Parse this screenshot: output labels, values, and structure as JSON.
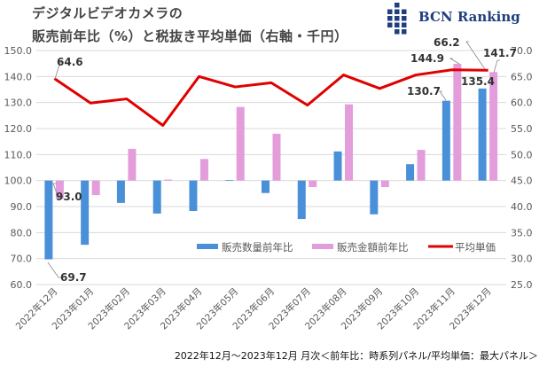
{
  "header": {
    "title_line1": "デジタルビデオカメラの",
    "title_line2": "販売前年比（%）と税抜き平均単価（右軸・千円）",
    "logo_text": "BCN Ranking"
  },
  "footer": "2022年12月～2023年12月 月次＜前年比：時系列パネル/平均単価：最大パネル＞",
  "colors": {
    "quantity": "#4a90d9",
    "amount": "#e39ddb",
    "price": "#e00000",
    "grid": "#d9d9d9"
  },
  "chart_data": {
    "type": "bar",
    "title": "デジタルビデオカメラの販売前年比（%）と税抜き平均単価（右軸・千円）",
    "categories": [
      "2022年12月",
      "2023年01月",
      "2023年02月",
      "2023年03月",
      "2023年04月",
      "2023年05月",
      "2023年06月",
      "2023年07月",
      "2023年08月",
      "2023年09月",
      "2023年10月",
      "2023年11月",
      "2023年12月"
    ],
    "ylim": [
      60,
      150
    ],
    "y2lim": [
      25,
      70
    ],
    "yticks": [
      "60.0",
      "70.0",
      "80.0",
      "90.0",
      "100.0",
      "110.0",
      "120.0",
      "130.0",
      "140.0",
      "150.0"
    ],
    "y2ticks": [
      "25.0",
      "30.0",
      "35.0",
      "40.0",
      "45.0",
      "50.0",
      "55.0",
      "60.0",
      "65.0",
      "70.0"
    ],
    "baseline": 100,
    "grid": true,
    "legend_position": "bottom-right",
    "series": [
      {
        "name": "販売数量前年比",
        "type": "bar",
        "axis": "left",
        "values": [
          69.7,
          75.3,
          91.4,
          87.3,
          88.3,
          100.2,
          95.2,
          85.2,
          111.2,
          87.0,
          106.3,
          130.7,
          135.4
        ]
      },
      {
        "name": "販売金額前年比",
        "type": "bar",
        "axis": "left",
        "values": [
          93.0,
          94.4,
          112.2,
          100.4,
          108.3,
          128.3,
          118.0,
          97.5,
          129.3,
          97.5,
          111.8,
          144.9,
          141.7
        ]
      },
      {
        "name": "平均単価",
        "type": "line",
        "axis": "right",
        "values": [
          64.6,
          59.9,
          60.7,
          55.6,
          65.0,
          63.0,
          63.8,
          59.5,
          65.3,
          62.7,
          65.3,
          66.3,
          66.2
        ]
      }
    ],
    "annotations": [
      {
        "text": "64.6",
        "series": 2,
        "index": 0
      },
      {
        "text": "93.0",
        "series": 1,
        "index": 0
      },
      {
        "text": "69.7",
        "series": 0,
        "index": 0
      },
      {
        "text": "130.7",
        "series": 0,
        "index": 11
      },
      {
        "text": "144.9",
        "series": 1,
        "index": 11
      },
      {
        "text": "66.2",
        "series": 2,
        "index": 12
      },
      {
        "text": "135.4",
        "series": 0,
        "index": 12
      },
      {
        "text": "141.7",
        "series": 1,
        "index": 12
      }
    ]
  }
}
